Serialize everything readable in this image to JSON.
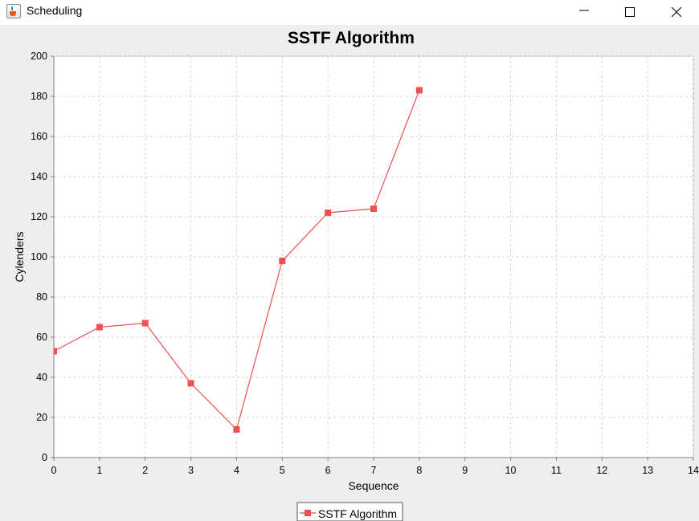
{
  "window": {
    "title": "Scheduling",
    "app_icon": "java-cup-icon",
    "controls": [
      "minimize-icon",
      "maximize-icon",
      "close-icon"
    ]
  },
  "chart_data": {
    "type": "line",
    "title": "SSTF Algorithm",
    "xlabel": "Sequence",
    "ylabel": "Cylenders",
    "xlim": [
      0,
      14
    ],
    "ylim": [
      0,
      200
    ],
    "xticks": [
      0,
      1,
      2,
      3,
      4,
      5,
      6,
      7,
      8,
      9,
      10,
      11,
      12,
      13,
      14
    ],
    "yticks": [
      0,
      20,
      40,
      60,
      80,
      100,
      120,
      140,
      160,
      180,
      200
    ],
    "grid": true,
    "legend_position": "bottom-center",
    "series": [
      {
        "name": "SSTF Algorithm",
        "color": "#f05050",
        "marker": "square",
        "x": [
          0,
          1,
          2,
          3,
          4,
          5,
          6,
          7,
          8
        ],
        "y": [
          53,
          65,
          67,
          37,
          14,
          98,
          122,
          124,
          183
        ]
      }
    ]
  }
}
